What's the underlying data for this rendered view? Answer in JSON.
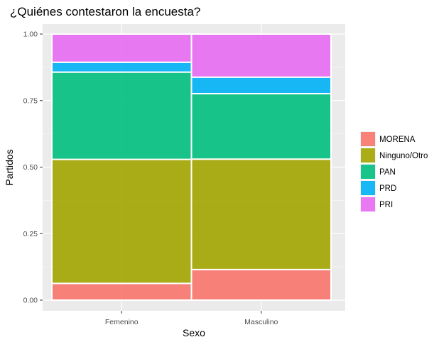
{
  "chart_data": {
    "type": "bar",
    "stacked": true,
    "variable_width": true,
    "title": "¿Quiénes contestaron la encuesta?",
    "xlabel": "Sexo",
    "ylabel": "Partidos",
    "ylim": [
      0,
      1
    ],
    "y_ticks": [
      "0.00",
      "0.25",
      "0.50",
      "0.75",
      "1.00"
    ],
    "y_tick_values": [
      0,
      0.25,
      0.5,
      0.75,
      1
    ],
    "categories": [
      "Femenino",
      "Masculino"
    ],
    "category_share": [
      0.5,
      0.5
    ],
    "grid": true,
    "legend_position": "right",
    "series": [
      {
        "name": "MORENA",
        "color": "#F8766D",
        "values": [
          0.063,
          0.115
        ]
      },
      {
        "name": "Ninguno/Otro",
        "color": "#A3A500",
        "values": [
          0.466,
          0.415
        ]
      },
      {
        "name": "PAN",
        "color": "#00BF7D",
        "values": [
          0.328,
          0.246
        ]
      },
      {
        "name": "PRD",
        "color": "#00B0F6",
        "values": [
          0.037,
          0.062
        ]
      },
      {
        "name": "PRI",
        "color": "#E76BF3",
        "values": [
          0.106,
          0.162
        ]
      }
    ]
  }
}
